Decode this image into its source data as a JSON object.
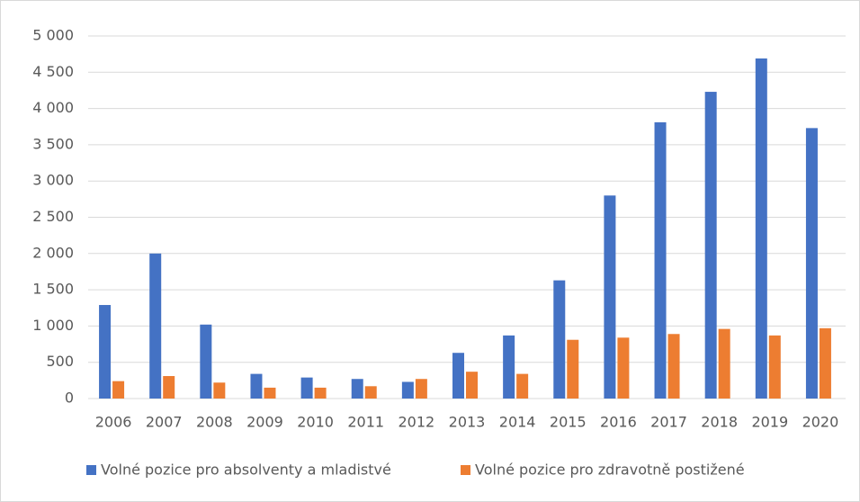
{
  "chart_data": {
    "type": "bar",
    "categories": [
      "2006",
      "2007",
      "2008",
      "2009",
      "2010",
      "2011",
      "2012",
      "2013",
      "2014",
      "2015",
      "2016",
      "2017",
      "2018",
      "2019",
      "2020"
    ],
    "series": [
      {
        "name": "Volné pozice pro absolventy a mladistvé",
        "color": "#4472c4",
        "values": [
          1290,
          2000,
          1020,
          340,
          290,
          270,
          230,
          630,
          870,
          1630,
          2800,
          3810,
          4230,
          4690,
          3730
        ]
      },
      {
        "name": "Volné pozice pro zdravotně postižené",
        "color": "#ed7d31",
        "values": [
          240,
          310,
          220,
          150,
          150,
          170,
          270,
          370,
          340,
          810,
          840,
          890,
          960,
          870,
          970
        ]
      }
    ],
    "ylim": [
      0,
      5000
    ],
    "yticks": [
      0,
      500,
      {
        "value": 1000,
        "label": "1 000"
      },
      {
        "value": 1500,
        "label": "1 500"
      },
      {
        "value": 2000,
        "label": "2 000"
      },
      {
        "value": 2500,
        "label": "2 500"
      },
      {
        "value": 3000,
        "label": "3 000"
      },
      {
        "value": 3500,
        "label": "3 500"
      },
      {
        "value": 4000,
        "label": "4 000"
      },
      {
        "value": 4500,
        "label": "4 500"
      },
      {
        "value": 5000,
        "label": "5 000"
      }
    ],
    "grid": true,
    "legend": "bottom"
  }
}
